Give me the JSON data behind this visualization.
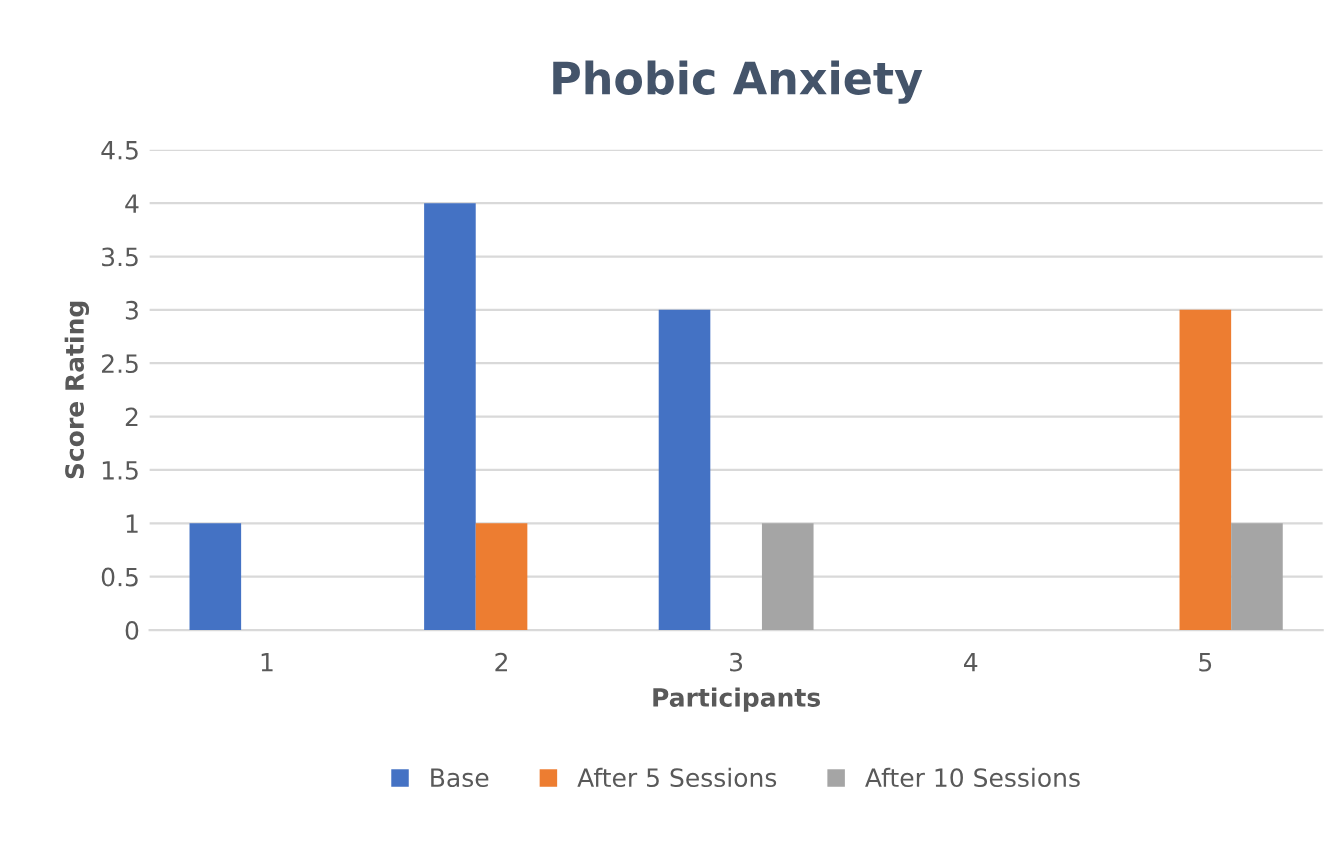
{
  "chart_data": {
    "type": "bar",
    "title": "Phobic Anxiety",
    "xlabel": "Participants",
    "ylabel": "Score Rating",
    "categories": [
      "1",
      "2",
      "3",
      "4",
      "5"
    ],
    "series": [
      {
        "name": "Base",
        "color": "#4472c4",
        "values": [
          1,
          4,
          3,
          0,
          0
        ]
      },
      {
        "name": "After 5 Sessions",
        "color": "#ed7d31",
        "values": [
          0,
          1,
          0,
          0,
          3
        ]
      },
      {
        "name": "After 10 Sessions",
        "color": "#a5a5a5",
        "values": [
          0,
          0,
          1,
          0,
          1
        ]
      }
    ],
    "ylim": [
      0,
      4.5
    ],
    "yticks": [
      0,
      0.5,
      1,
      1.5,
      2,
      2.5,
      3,
      3.5,
      4,
      4.5
    ],
    "grid": "y",
    "legend": "bottom"
  }
}
